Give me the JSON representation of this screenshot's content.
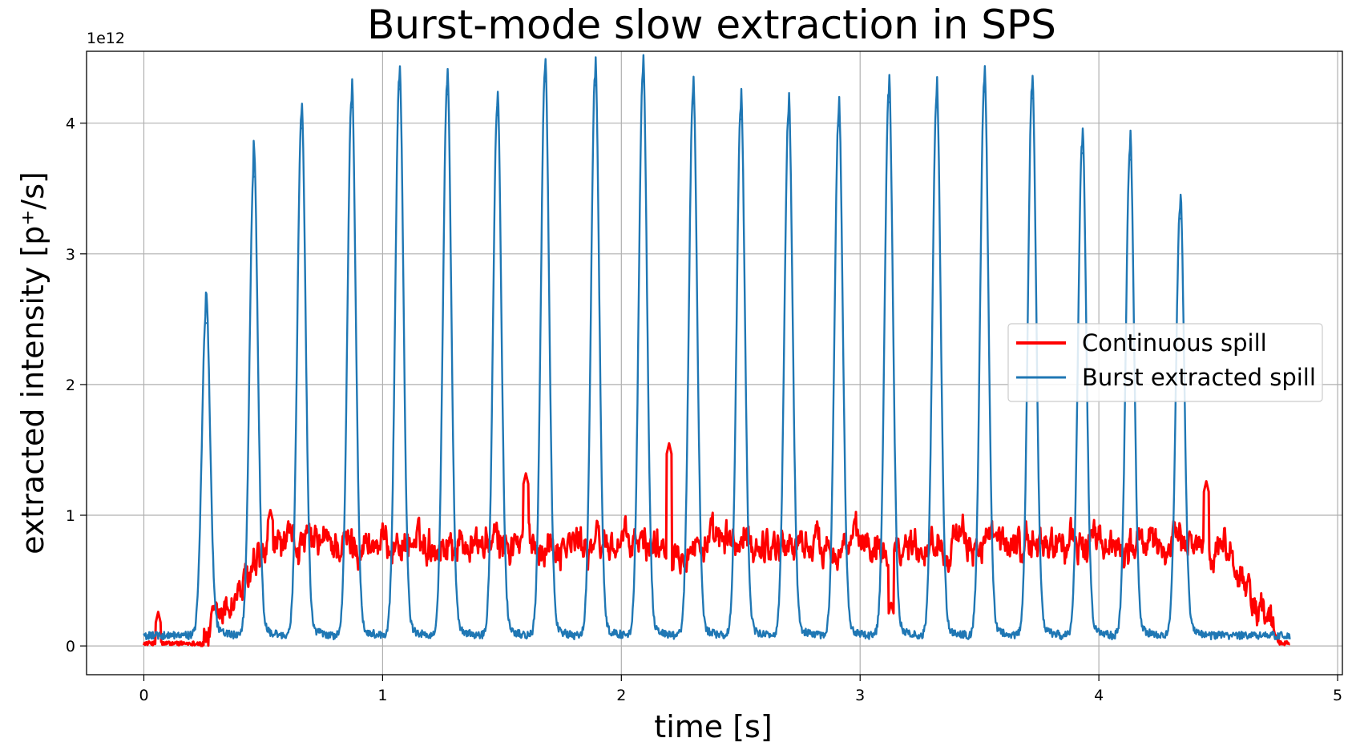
{
  "chart_data": {
    "type": "line",
    "title": "Burst-mode slow extraction in SPS",
    "xlabel": "time [s]",
    "ylabel": "extracted intensity [p⁺/s]",
    "y_offset_text": "1e12",
    "xlim": [
      -0.24,
      5.02
    ],
    "ylim": [
      -0.22,
      4.55
    ],
    "x_ticks": [
      0,
      1,
      2,
      3,
      4,
      5
    ],
    "y_ticks": [
      0,
      1,
      2,
      3,
      4
    ],
    "grid": true,
    "legend_position": "center-right",
    "colors": {
      "continuous": "#ff0000",
      "burst": "#1f77b4",
      "grid": "#b0b0b0",
      "axes": "#000000"
    },
    "series": [
      {
        "name": "Continuous spill",
        "color": "#ff0000",
        "shape": "continuous",
        "x_start": 0.0,
        "rise_start": 0.24,
        "plateau_start": 0.55,
        "fall_start": 4.52,
        "end": 4.8,
        "plateau_mean": 0.78,
        "notable_points": [
          {
            "x": 0.06,
            "y": 0.26
          },
          {
            "x": 0.53,
            "y": 1.04
          },
          {
            "x": 1.6,
            "y": 1.32
          },
          {
            "x": 2.2,
            "y": 1.55
          },
          {
            "x": 3.13,
            "y": 0.33
          },
          {
            "x": 4.45,
            "y": 1.26
          }
        ]
      },
      {
        "name": "Burst extracted spill",
        "color": "#1f77b4",
        "shape": "pulses",
        "baseline": 0.05,
        "end": 4.8,
        "peaks": [
          {
            "x": 0.26,
            "y": 2.47
          },
          {
            "x": 0.46,
            "y": 3.59
          },
          {
            "x": 0.66,
            "y": 3.96
          },
          {
            "x": 0.87,
            "y": 4.12
          },
          {
            "x": 1.07,
            "y": 4.26
          },
          {
            "x": 1.27,
            "y": 4.22
          },
          {
            "x": 1.48,
            "y": 4.06
          },
          {
            "x": 1.68,
            "y": 4.32
          },
          {
            "x": 1.89,
            "y": 4.29
          },
          {
            "x": 2.09,
            "y": 4.32
          },
          {
            "x": 2.3,
            "y": 4.15
          },
          {
            "x": 2.5,
            "y": 4.03
          },
          {
            "x": 2.7,
            "y": 4.0
          },
          {
            "x": 2.91,
            "y": 3.98
          },
          {
            "x": 3.12,
            "y": 4.16
          },
          {
            "x": 3.32,
            "y": 4.12
          },
          {
            "x": 3.52,
            "y": 4.24
          },
          {
            "x": 3.72,
            "y": 4.19
          },
          {
            "x": 3.93,
            "y": 3.77
          },
          {
            "x": 4.13,
            "y": 3.72
          },
          {
            "x": 4.34,
            "y": 3.27
          }
        ]
      }
    ]
  }
}
